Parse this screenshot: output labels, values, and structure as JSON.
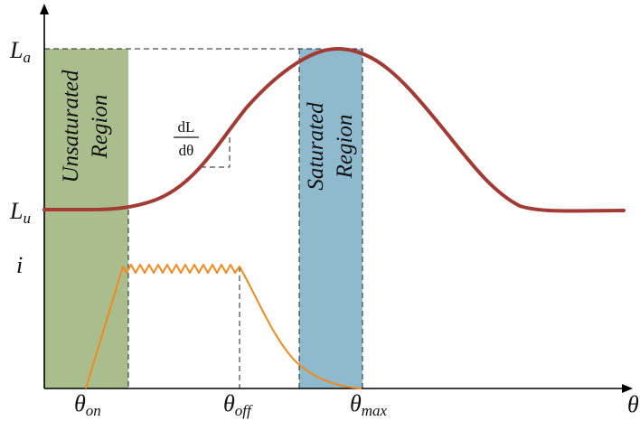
{
  "labels": {
    "la_main": "L",
    "la_sub": "a",
    "lu_main": "L",
    "lu_sub": "u",
    "current": "i",
    "theta": "θ",
    "theta_on_sub": "on",
    "theta_off_sub": "off",
    "theta_max_sub": "max"
  },
  "regions": {
    "unsaturated": {
      "line1": "Unsaturated",
      "line2": "Region"
    },
    "saturated": {
      "line1": "Saturated",
      "line2": "Region"
    }
  },
  "derivative": {
    "numerator": "dL",
    "denominator": "dθ"
  },
  "colors": {
    "unsaturated_fill": "#a9bd8d",
    "saturated_fill": "#8fb9cd",
    "inductance_curve": "#a23b35",
    "current_curve": "#f08a1f",
    "axis": "#000000"
  }
}
